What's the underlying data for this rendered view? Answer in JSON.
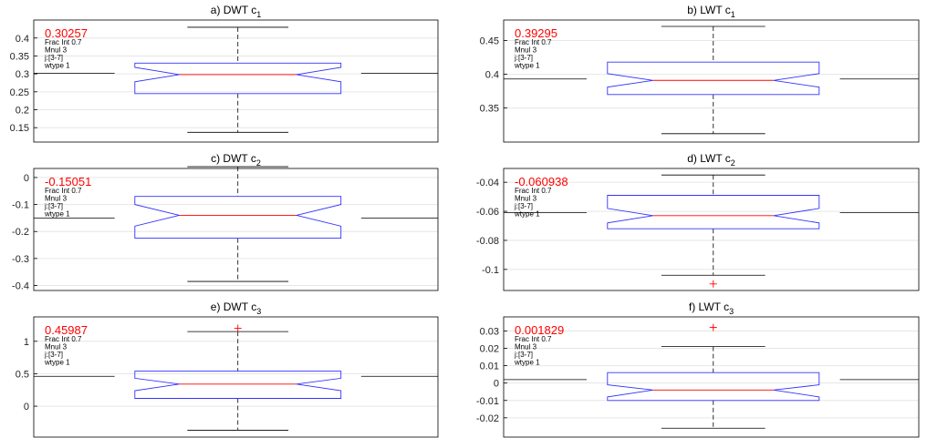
{
  "chart_data": [
    {
      "type": "boxplot",
      "title": "a) DWT c",
      "subscript": "1",
      "ylim": [
        0.12,
        0.44
      ],
      "yticks": [
        0.15,
        0.2,
        0.25,
        0.3,
        0.35,
        0.4
      ],
      "ytick_labels": [
        "0.15",
        "0.2",
        "0.25",
        "0.3",
        "0.35",
        "0.4"
      ],
      "reference": 0.302,
      "box": {
        "q1": 0.245,
        "median": 0.298,
        "q3": 0.33,
        "notch_low": 0.278,
        "notch_high": 0.318,
        "whisker_low": 0.137,
        "whisker_high": 0.43
      },
      "outliers": [],
      "value_label": "0.30257",
      "notes": [
        "Frac Int 0.7",
        "Mnul 3",
        "j:[3-7]",
        "wtype 1"
      ]
    },
    {
      "type": "boxplot",
      "title": "b) LWT c",
      "subscript": "1",
      "ylim": [
        0.305,
        0.475
      ],
      "yticks": [
        0.35,
        0.4,
        0.45
      ],
      "ytick_labels": [
        "0.35",
        "0.4",
        "0.45"
      ],
      "reference": 0.393,
      "box": {
        "q1": 0.37,
        "median": 0.391,
        "q3": 0.418,
        "notch_low": 0.381,
        "notch_high": 0.401,
        "whisker_low": 0.312,
        "whisker_high": 0.471
      },
      "outliers": [],
      "value_label": "0.39295",
      "notes": [
        "Frac Int 0.7",
        "Mnul 3",
        "j:[3-7]",
        "wtype 1"
      ]
    },
    {
      "type": "boxplot",
      "title": "c) DWT c",
      "subscript": "2",
      "ylim": [
        -0.405,
        0.02
      ],
      "yticks": [
        -0.4,
        -0.3,
        -0.2,
        -0.1,
        0
      ],
      "ytick_labels": [
        "-0.4",
        "-0.3",
        "-0.2",
        "-0.1",
        "0"
      ],
      "reference": -0.15,
      "box": {
        "q1": -0.225,
        "median": -0.14,
        "q3": -0.07,
        "notch_low": -0.18,
        "notch_high": -0.1,
        "whisker_low": -0.385,
        "whisker_high": 0.04
      },
      "outliers": [],
      "value_label": "-0.15051",
      "notes": [
        "Frac Int 0.7",
        "Mnul 3",
        "j:[3-7]",
        "wtype 1"
      ]
    },
    {
      "type": "boxplot",
      "title": "d) LWT c",
      "subscript": "2",
      "ylim": [
        -0.112,
        -0.033
      ],
      "yticks": [
        -0.1,
        -0.08,
        -0.06,
        -0.04
      ],
      "ytick_labels": [
        "-0.1",
        "-0.08",
        "-0.06",
        "-0.04"
      ],
      "reference": -0.061,
      "box": {
        "q1": -0.072,
        "median": -0.063,
        "q3": -0.049,
        "notch_low": -0.068,
        "notch_high": -0.058,
        "whisker_low": -0.104,
        "whisker_high": -0.035
      },
      "outliers": [
        -0.11
      ],
      "value_label": "-0.060938",
      "notes": [
        "Frac Int 0.7",
        "Mnul 3",
        "j:[3-7]",
        "wtype 1"
      ]
    },
    {
      "type": "boxplot",
      "title": "e) DWT c",
      "subscript": "3",
      "ylim": [
        -0.42,
        1.32
      ],
      "yticks": [
        0,
        0.5,
        1
      ],
      "ytick_labels": [
        "0",
        "0.5",
        "1"
      ],
      "reference": 0.46,
      "box": {
        "q1": 0.12,
        "median": 0.34,
        "q3": 0.54,
        "notch_low": 0.24,
        "notch_high": 0.43,
        "whisker_low": -0.37,
        "whisker_high": 1.15
      },
      "outliers": [
        1.2
      ],
      "value_label": "0.45987",
      "notes": [
        "Frac Int 0.7",
        "Mnul 3",
        "j:[3-7]",
        "wtype 1"
      ]
    },
    {
      "type": "boxplot",
      "title": "f) LWT c",
      "subscript": "3",
      "ylim": [
        -0.029,
        0.036
      ],
      "yticks": [
        -0.02,
        -0.01,
        0,
        0.01,
        0.02,
        0.03
      ],
      "ytick_labels": [
        "-0.02",
        "-0.01",
        "0",
        "0.01",
        "0.02",
        "0.03"
      ],
      "reference": 0.002,
      "box": {
        "q1": -0.01,
        "median": -0.004,
        "q3": 0.006,
        "notch_low": -0.008,
        "notch_high": -0.001,
        "whisker_low": -0.026,
        "whisker_high": 0.021
      },
      "outliers": [
        0.032
      ],
      "value_label": "0.001829",
      "notes": [
        "Frac Int 0.7",
        "Mnul 3",
        "j:[3-7]",
        "wtype 1"
      ]
    }
  ],
  "colors": {
    "box": "#3333ff",
    "median": "#ff0000",
    "whisker": "#000000",
    "reference": "#000000",
    "value_label": "#ff0000",
    "outlier": "#ff0000",
    "grid": "#e6e6e6",
    "axes": "#000000"
  }
}
